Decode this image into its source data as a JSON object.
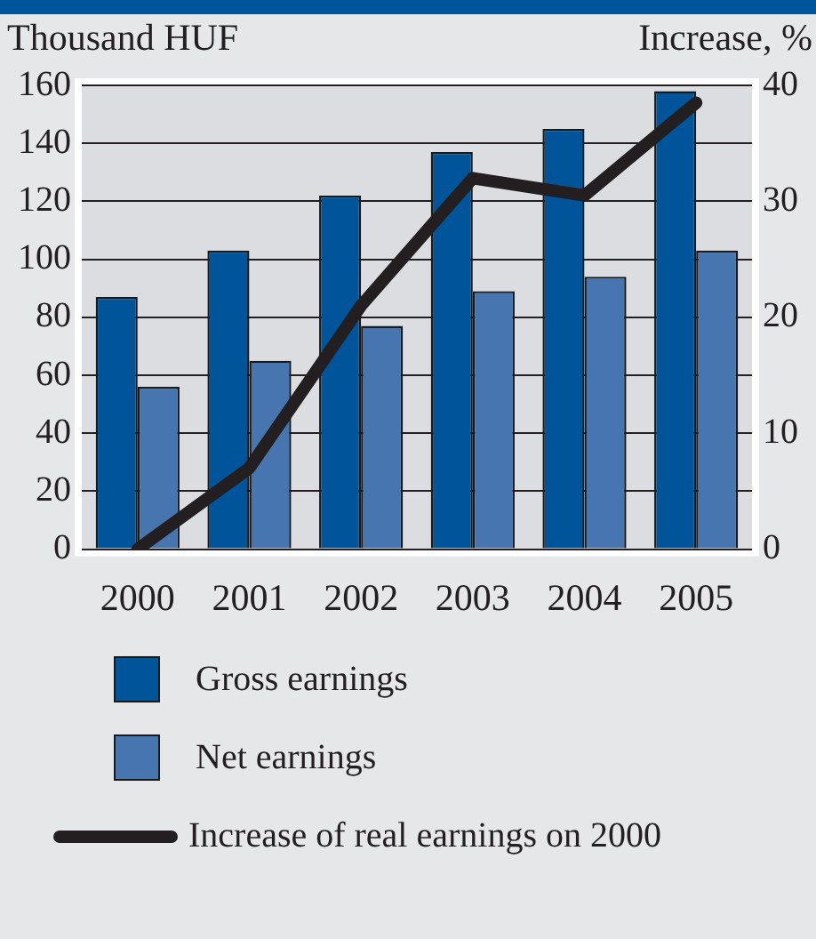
{
  "chart_data": {
    "type": "bar",
    "ylabel": "Thousand HUF",
    "y2label": "Increase, %",
    "categories": [
      "2000",
      "2001",
      "2002",
      "2003",
      "2004",
      "2005"
    ],
    "series": [
      {
        "name": "Gross earnings",
        "color": "#00559a",
        "values": [
          87,
          103,
          122,
          137,
          145,
          158
        ]
      },
      {
        "name": "Net earnings",
        "color": "#4675b0",
        "values": [
          56,
          65,
          77,
          89,
          94,
          103
        ]
      },
      {
        "name": "Increase of real earnings on 2000",
        "type": "line",
        "axis": "y2",
        "color": "#231f20",
        "values": [
          0,
          7,
          21,
          32,
          30.5,
          38.5
        ]
      }
    ],
    "ylim": [
      0,
      160
    ],
    "yticks": [
      0,
      20,
      40,
      60,
      80,
      100,
      120,
      140,
      160
    ],
    "y2lim": [
      0,
      40
    ],
    "y2ticks": [
      0,
      10,
      20,
      30,
      40
    ],
    "grid": "y",
    "legend": "bottom"
  }
}
